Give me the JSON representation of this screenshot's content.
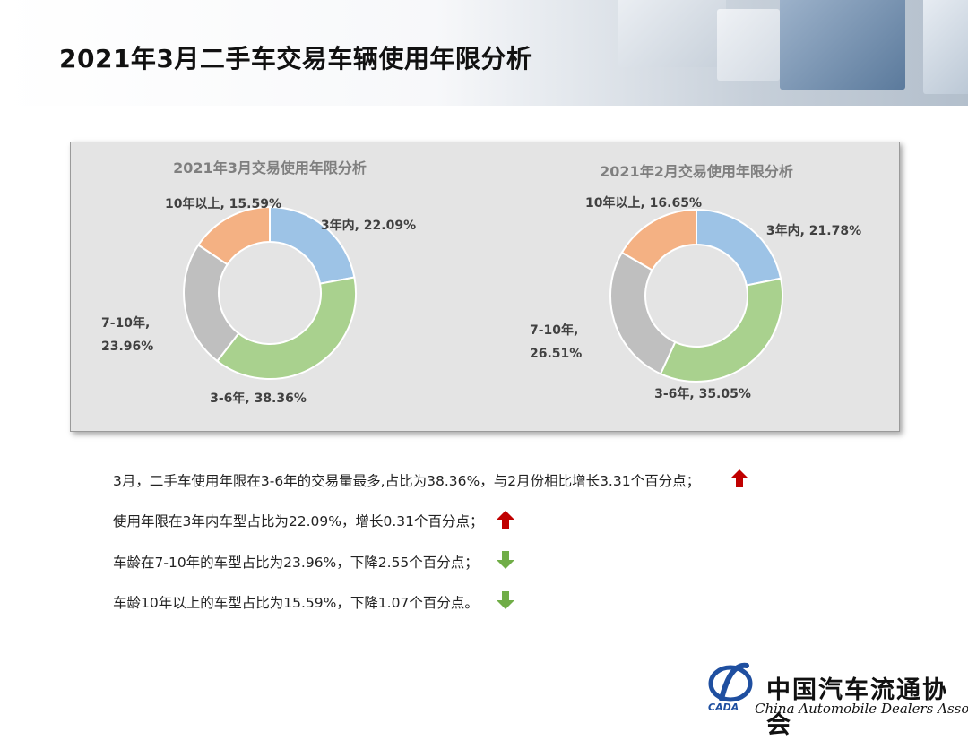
{
  "page": {
    "title": "2021年3月二手车交易车辆使用年限分析"
  },
  "colors": {
    "blue": "#9dc3e6",
    "green": "#a9d18e",
    "gray": "#bfbfbf",
    "orange": "#f4b183",
    "arrow_up": "#c00000",
    "arrow_down": "#70ad47",
    "logo_blue": "#1f4fa0"
  },
  "chart_data": [
    {
      "type": "pie",
      "donut": true,
      "title": "2021年3月交易使用年限分析",
      "categories": [
        "3年内",
        "3-6年",
        "7-10年",
        "10年以上"
      ],
      "values": [
        22.09,
        38.36,
        23.96,
        15.59
      ],
      "labels": [
        "3年内, 22.09%",
        "3-6年, 38.36%",
        [
          "7-10年,",
          "23.96%"
        ],
        "10年以上, 15.59%"
      ]
    },
    {
      "type": "pie",
      "donut": true,
      "title": "2021年2月交易使用年限分析",
      "categories": [
        "3年内",
        "3-6年",
        "7-10年",
        "10年以上"
      ],
      "values": [
        21.78,
        35.05,
        26.51,
        16.65
      ],
      "labels": [
        "3年内, 21.78%",
        "3-6年, 35.05%",
        [
          "7-10年,",
          "26.51%"
        ],
        "10年以上, 16.65%"
      ]
    }
  ],
  "bullets": [
    {
      "text": "3月，二手车使用年限在3-6年的交易量最多,占比为38.36%，与2月份相比增长3.31个百分点；",
      "direction": "up"
    },
    {
      "text": "使用年限在3年内车型占比为22.09%，增长0.31个百分点；",
      "direction": "up"
    },
    {
      "text": "车龄在7-10年的车型占比为23.96%，下降2.55个百分点；",
      "direction": "down"
    },
    {
      "text": "车龄10年以上的车型占比为15.59%，下降1.07个百分点。",
      "direction": "down"
    }
  ],
  "logo": {
    "name_cn": "中国汽车流通协会",
    "name_en": "China Automobile Dealers Association",
    "abbr": "CADA"
  }
}
